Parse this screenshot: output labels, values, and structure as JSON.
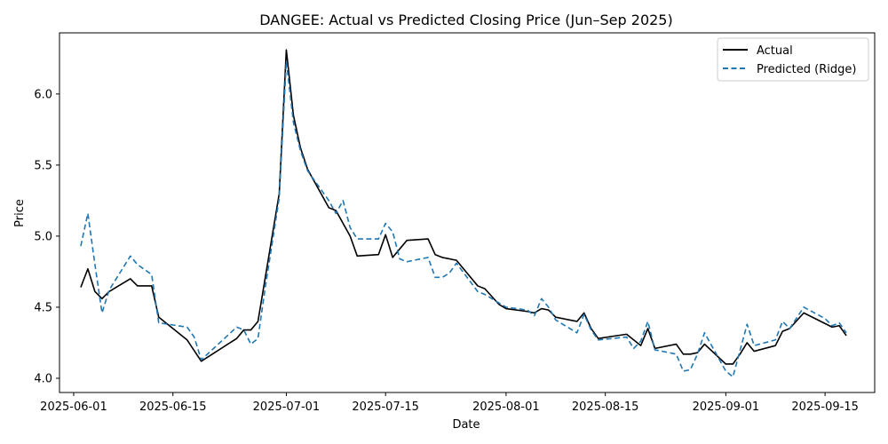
{
  "chart_data": {
    "type": "line",
    "title": "DANGEE: Actual vs Predicted Closing Price (Jun–Sep 2025)",
    "xlabel": "Date",
    "ylabel": "Price",
    "x_ticks": [
      "2025-06-01",
      "2025-06-15",
      "2025-07-01",
      "2025-07-15",
      "2025-08-01",
      "2025-08-15",
      "2025-09-01",
      "2025-09-15"
    ],
    "y_ticks": [
      "4.0",
      "4.5",
      "5.0",
      "5.5",
      "6.0"
    ],
    "xlim": [
      "2025-05-30",
      "2025-09-22"
    ],
    "ylim": [
      3.9,
      6.43
    ],
    "grid": false,
    "legend_position": "top-right",
    "colors": {
      "actual": "#000000",
      "predicted": "#1f77b4"
    },
    "series": [
      {
        "name": "Actual",
        "style": "solid",
        "points": [
          [
            "2025-06-02",
            4.64
          ],
          [
            "2025-06-03",
            4.77
          ],
          [
            "2025-06-04",
            4.61
          ],
          [
            "2025-06-05",
            4.56
          ],
          [
            "2025-06-06",
            4.61
          ],
          [
            "2025-06-09",
            4.7
          ],
          [
            "2025-06-10",
            4.65
          ],
          [
            "2025-06-12",
            4.65
          ],
          [
            "2025-06-13",
            4.43
          ],
          [
            "2025-06-17",
            4.27
          ],
          [
            "2025-06-19",
            4.12
          ],
          [
            "2025-06-24",
            4.28
          ],
          [
            "2025-06-25",
            4.34
          ],
          [
            "2025-06-26",
            4.34
          ],
          [
            "2025-06-27",
            4.4
          ],
          [
            "2025-06-28",
            4.7
          ],
          [
            "2025-06-30",
            5.3
          ],
          [
            "2025-07-01",
            6.31
          ],
          [
            "2025-07-02",
            5.85
          ],
          [
            "2025-07-03",
            5.62
          ],
          [
            "2025-07-04",
            5.47
          ],
          [
            "2025-07-07",
            5.2
          ],
          [
            "2025-07-08",
            5.18
          ],
          [
            "2025-07-10",
            5.0
          ],
          [
            "2025-07-11",
            4.86
          ],
          [
            "2025-07-14",
            4.87
          ],
          [
            "2025-07-15",
            5.01
          ],
          [
            "2025-07-16",
            4.85
          ],
          [
            "2025-07-17",
            4.91
          ],
          [
            "2025-07-18",
            4.97
          ],
          [
            "2025-07-21",
            4.98
          ],
          [
            "2025-07-22",
            4.87
          ],
          [
            "2025-07-23",
            4.85
          ],
          [
            "2025-07-25",
            4.83
          ],
          [
            "2025-07-28",
            4.65
          ],
          [
            "2025-07-29",
            4.63
          ],
          [
            "2025-07-31",
            4.52
          ],
          [
            "2025-08-01",
            4.49
          ],
          [
            "2025-08-04",
            4.47
          ],
          [
            "2025-08-05",
            4.46
          ],
          [
            "2025-08-06",
            4.49
          ],
          [
            "2025-08-07",
            4.48
          ],
          [
            "2025-08-08",
            4.43
          ],
          [
            "2025-08-11",
            4.4
          ],
          [
            "2025-08-12",
            4.46
          ],
          [
            "2025-08-13",
            4.35
          ],
          [
            "2025-08-14",
            4.28
          ],
          [
            "2025-08-18",
            4.31
          ],
          [
            "2025-08-19",
            4.27
          ],
          [
            "2025-08-20",
            4.23
          ],
          [
            "2025-08-21",
            4.35
          ],
          [
            "2025-08-22",
            4.21
          ],
          [
            "2025-08-25",
            4.24
          ],
          [
            "2025-08-26",
            4.17
          ],
          [
            "2025-08-27",
            4.17
          ],
          [
            "2025-08-28",
            4.18
          ],
          [
            "2025-08-29",
            4.24
          ],
          [
            "2025-09-01",
            4.1
          ],
          [
            "2025-09-02",
            4.1
          ],
          [
            "2025-09-03",
            4.17
          ],
          [
            "2025-09-04",
            4.25
          ],
          [
            "2025-09-05",
            4.19
          ],
          [
            "2025-09-08",
            4.23
          ],
          [
            "2025-09-09",
            4.33
          ],
          [
            "2025-09-10",
            4.35
          ],
          [
            "2025-09-12",
            4.46
          ],
          [
            "2025-09-16",
            4.36
          ],
          [
            "2025-09-17",
            4.37
          ],
          [
            "2025-09-18",
            4.3
          ]
        ]
      },
      {
        "name": "Predicted (Ridge)",
        "style": "dashed",
        "points": [
          [
            "2025-06-02",
            4.93
          ],
          [
            "2025-06-03",
            5.16
          ],
          [
            "2025-06-04",
            4.8
          ],
          [
            "2025-06-05",
            4.46
          ],
          [
            "2025-06-06",
            4.62
          ],
          [
            "2025-06-09",
            4.86
          ],
          [
            "2025-06-10",
            4.8
          ],
          [
            "2025-06-12",
            4.73
          ],
          [
            "2025-06-13",
            4.39
          ],
          [
            "2025-06-17",
            4.36
          ],
          [
            "2025-06-18",
            4.29
          ],
          [
            "2025-06-19",
            4.13
          ],
          [
            "2025-06-24",
            4.36
          ],
          [
            "2025-06-25",
            4.34
          ],
          [
            "2025-06-26",
            4.24
          ],
          [
            "2025-06-27",
            4.28
          ],
          [
            "2025-06-28",
            4.63
          ],
          [
            "2025-06-30",
            5.27
          ],
          [
            "2025-07-01",
            6.23
          ],
          [
            "2025-07-02",
            5.8
          ],
          [
            "2025-07-03",
            5.6
          ],
          [
            "2025-07-04",
            5.46
          ],
          [
            "2025-07-06",
            5.32
          ],
          [
            "2025-07-07",
            5.25
          ],
          [
            "2025-07-08",
            5.16
          ],
          [
            "2025-07-09",
            5.25
          ],
          [
            "2025-07-10",
            5.06
          ],
          [
            "2025-07-11",
            4.98
          ],
          [
            "2025-07-14",
            4.98
          ],
          [
            "2025-07-15",
            5.09
          ],
          [
            "2025-07-16",
            5.03
          ],
          [
            "2025-07-17",
            4.84
          ],
          [
            "2025-07-18",
            4.82
          ],
          [
            "2025-07-21",
            4.85
          ],
          [
            "2025-07-22",
            4.71
          ],
          [
            "2025-07-23",
            4.71
          ],
          [
            "2025-07-24",
            4.74
          ],
          [
            "2025-07-25",
            4.81
          ],
          [
            "2025-07-28",
            4.61
          ],
          [
            "2025-07-29",
            4.59
          ],
          [
            "2025-07-31",
            4.53
          ],
          [
            "2025-08-01",
            4.5
          ],
          [
            "2025-08-04",
            4.48
          ],
          [
            "2025-08-05",
            4.44
          ],
          [
            "2025-08-06",
            4.56
          ],
          [
            "2025-08-07",
            4.5
          ],
          [
            "2025-08-08",
            4.41
          ],
          [
            "2025-08-11",
            4.32
          ],
          [
            "2025-08-12",
            4.45
          ],
          [
            "2025-08-13",
            4.34
          ],
          [
            "2025-08-14",
            4.27
          ],
          [
            "2025-08-18",
            4.29
          ],
          [
            "2025-08-19",
            4.21
          ],
          [
            "2025-08-20",
            4.26
          ],
          [
            "2025-08-21",
            4.4
          ],
          [
            "2025-08-22",
            4.2
          ],
          [
            "2025-08-25",
            4.17
          ],
          [
            "2025-08-26",
            4.05
          ],
          [
            "2025-08-27",
            4.06
          ],
          [
            "2025-08-28",
            4.17
          ],
          [
            "2025-08-29",
            4.32
          ],
          [
            "2025-09-01",
            4.05
          ],
          [
            "2025-09-02",
            4.01
          ],
          [
            "2025-09-04",
            4.38
          ],
          [
            "2025-09-05",
            4.23
          ],
          [
            "2025-09-08",
            4.27
          ],
          [
            "2025-09-09",
            4.4
          ],
          [
            "2025-09-10",
            4.35
          ],
          [
            "2025-09-12",
            4.5
          ],
          [
            "2025-09-15",
            4.42
          ],
          [
            "2025-09-16",
            4.37
          ],
          [
            "2025-09-17",
            4.39
          ],
          [
            "2025-09-18",
            4.32
          ]
        ]
      }
    ]
  }
}
